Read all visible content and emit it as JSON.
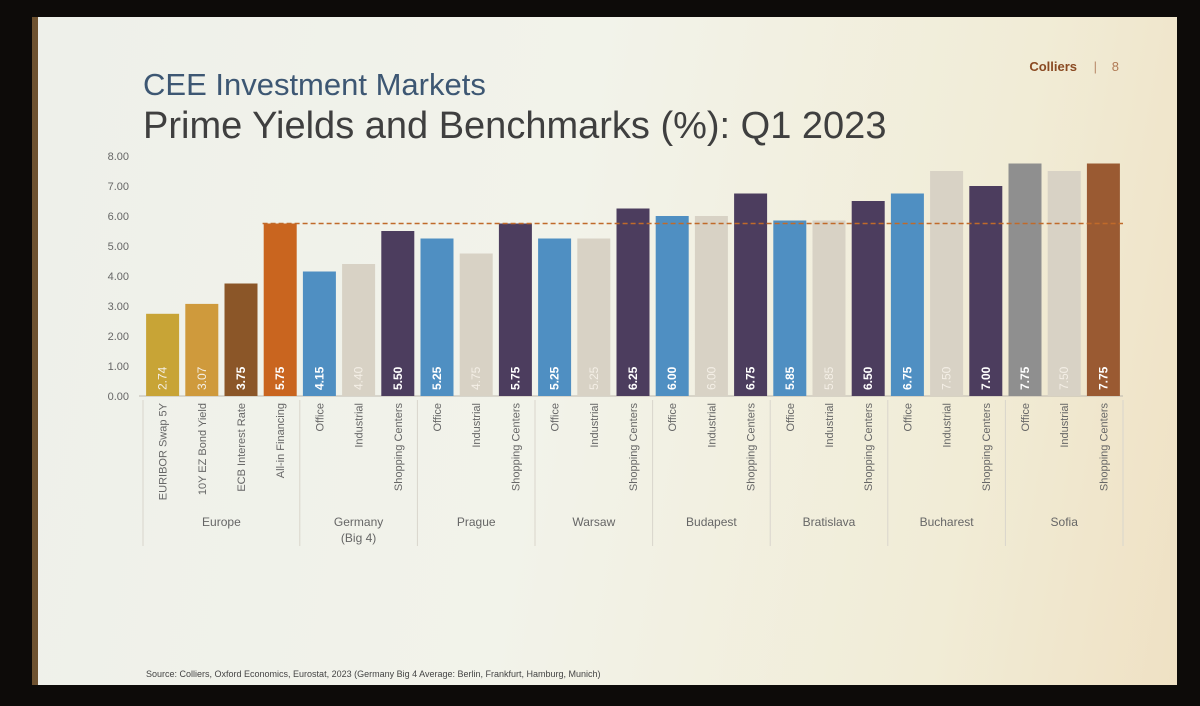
{
  "header": {
    "title": "CEE Investment Markets",
    "subtitle": "Prime Yields and Benchmarks (%): Q1 2023",
    "brand": "Colliers",
    "separator": "|",
    "page": "8"
  },
  "footer": {
    "source": "Source: Colliers, Oxford Economics, Eurostat, 2023  (Germany Big 4 Average: Berlin, Frankfurt, Hamburg, Munich)"
  },
  "colors": {
    "euribor": "#c8a436",
    "bond": "#cf9a3c",
    "ecb": "#8b5628",
    "financing": "#c9651f",
    "office": "#4f8fc2",
    "industrial": "#d8d2c5",
    "shopping": "#4c3d5e",
    "sofia_office": "#8f8f8f",
    "sofia_shopping": "#9a5a32",
    "reference_line": "#c06a2a"
  },
  "chart_data": {
    "type": "bar",
    "title": "Prime Yields and Benchmarks (%): Q1 2023",
    "ylabel": "%",
    "ylim": [
      0,
      8
    ],
    "yticks": [
      "0.00",
      "1.00",
      "2.00",
      "3.00",
      "4.00",
      "5.00",
      "6.00",
      "7.00",
      "8.00"
    ],
    "reference_line": 5.75,
    "bars": [
      {
        "group": "Europe",
        "label": "EURIBOR Swap 5Y",
        "value": 2.74,
        "value_label": "2.74",
        "color_key": "euribor",
        "label_style": "light"
      },
      {
        "group": "Europe",
        "label": "10Y EZ Bond Yield",
        "value": 3.07,
        "value_label": "3.07",
        "color_key": "bond",
        "label_style": "light"
      },
      {
        "group": "Europe",
        "label": "ECB Interest Rate",
        "value": 3.75,
        "value_label": "3.75",
        "color_key": "ecb",
        "label_style": "bold"
      },
      {
        "group": "Europe",
        "label": "All-in Financing",
        "value": 5.75,
        "value_label": "5.75",
        "color_key": "financing",
        "label_style": "bold"
      },
      {
        "group": "Germany (Big 4)",
        "label": "Office",
        "value": 4.15,
        "value_label": "4.15",
        "color_key": "office",
        "label_style": "bold"
      },
      {
        "group": "Germany (Big 4)",
        "label": "Industrial",
        "value": 4.4,
        "value_label": "4.40",
        "color_key": "industrial",
        "label_style": "light"
      },
      {
        "group": "Germany (Big 4)",
        "label": "Shopping Centers",
        "value": 5.5,
        "value_label": "5.50",
        "color_key": "shopping",
        "label_style": "bold"
      },
      {
        "group": "Prague",
        "label": "Office",
        "value": 5.25,
        "value_label": "5.25",
        "color_key": "office",
        "label_style": "bold"
      },
      {
        "group": "Prague",
        "label": "Industrial",
        "value": 4.75,
        "value_label": "4.75",
        "color_key": "industrial",
        "label_style": "light"
      },
      {
        "group": "Prague",
        "label": "Shopping Centers",
        "value": 5.75,
        "value_label": "5.75",
        "color_key": "shopping",
        "label_style": "bold"
      },
      {
        "group": "Warsaw",
        "label": "Office",
        "value": 5.25,
        "value_label": "5.25",
        "color_key": "office",
        "label_style": "bold"
      },
      {
        "group": "Warsaw",
        "label": "Industrial",
        "value": 5.25,
        "value_label": "5.25",
        "color_key": "industrial",
        "label_style": "light"
      },
      {
        "group": "Warsaw",
        "label": "Shopping Centers",
        "value": 6.25,
        "value_label": "6.25",
        "color_key": "shopping",
        "label_style": "bold"
      },
      {
        "group": "Budapest",
        "label": "Office",
        "value": 6.0,
        "value_label": "6.00",
        "color_key": "office",
        "label_style": "bold"
      },
      {
        "group": "Budapest",
        "label": "Industrial",
        "value": 6.0,
        "value_label": "6.00",
        "color_key": "industrial",
        "label_style": "light"
      },
      {
        "group": "Budapest",
        "label": "Shopping Centers",
        "value": 6.75,
        "value_label": "6.75",
        "color_key": "shopping",
        "label_style": "bold"
      },
      {
        "group": "Bratislava",
        "label": "Office",
        "value": 5.85,
        "value_label": "5.85",
        "color_key": "office",
        "label_style": "bold"
      },
      {
        "group": "Bratislava",
        "label": "Industrial",
        "value": 5.85,
        "value_label": "5.85",
        "color_key": "industrial",
        "label_style": "light"
      },
      {
        "group": "Bratislava",
        "label": "Shopping Centers",
        "value": 6.5,
        "value_label": "6.50",
        "color_key": "shopping",
        "label_style": "bold"
      },
      {
        "group": "Bucharest",
        "label": "Office",
        "value": 6.75,
        "value_label": "6.75",
        "color_key": "office",
        "label_style": "bold"
      },
      {
        "group": "Bucharest",
        "label": "Industrial",
        "value": 7.5,
        "value_label": "7.50",
        "color_key": "industrial",
        "label_style": "light"
      },
      {
        "group": "Bucharest",
        "label": "Shopping Centers",
        "value": 7.0,
        "value_label": "7.00",
        "color_key": "shopping",
        "label_style": "bold"
      },
      {
        "group": "Sofia",
        "label": "Office",
        "value": 7.75,
        "value_label": "7.75",
        "color_key": "sofia_office",
        "label_style": "bold"
      },
      {
        "group": "Sofia",
        "label": "Industrial",
        "value": 7.5,
        "value_label": "7.50",
        "color_key": "industrial",
        "label_style": "light"
      },
      {
        "group": "Sofia",
        "label": "Shopping Centers",
        "value": 7.75,
        "value_label": "7.75",
        "color_key": "sofia_shopping",
        "label_style": "bold"
      }
    ],
    "groups": [
      {
        "lines": [
          "Europe"
        ],
        "start": 0,
        "end": 3
      },
      {
        "lines": [
          "Germany",
          "(Big 4)"
        ],
        "start": 4,
        "end": 6
      },
      {
        "lines": [
          "Prague"
        ],
        "start": 7,
        "end": 9
      },
      {
        "lines": [
          "Warsaw"
        ],
        "start": 10,
        "end": 12
      },
      {
        "lines": [
          "Budapest"
        ],
        "start": 13,
        "end": 15
      },
      {
        "lines": [
          "Bratislava"
        ],
        "start": 16,
        "end": 18
      },
      {
        "lines": [
          "Bucharest"
        ],
        "start": 19,
        "end": 21
      },
      {
        "lines": [
          "Sofia"
        ],
        "start": 22,
        "end": 24
      }
    ]
  }
}
